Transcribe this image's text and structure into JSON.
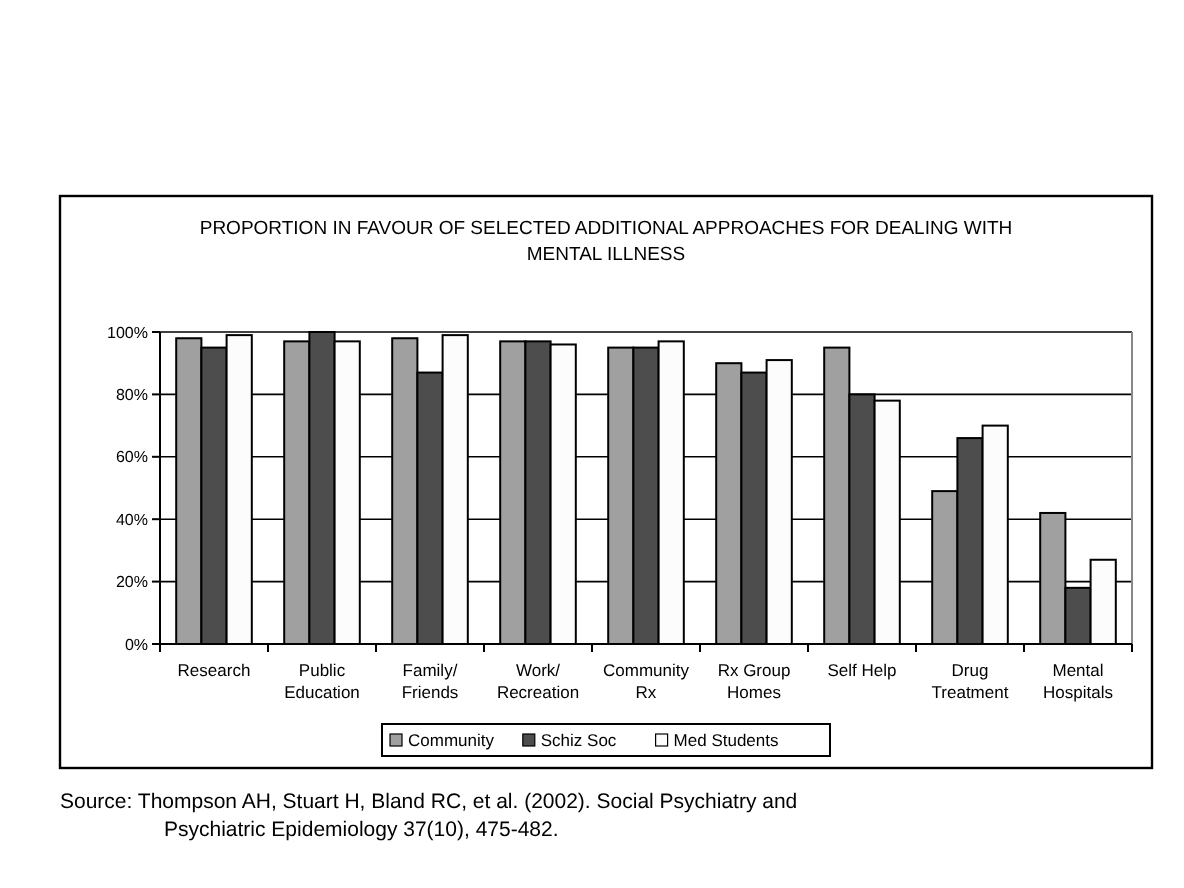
{
  "chart_data": {
    "type": "bar",
    "title": "PROPORTION IN FAVOUR OF SELECTED ADDITIONAL APPROACHES FOR DEALING WITH MENTAL ILLNESS",
    "categories": [
      "Research",
      "Public\nEducation",
      "Family/\nFriends",
      "Work/\nRecreation",
      "Community\nRx",
      "Rx Group\nHomes",
      "Self Help",
      "Drug\nTreatment",
      "Mental\nHospitals"
    ],
    "series": [
      {
        "name": "Community",
        "color": "#a0a0a0",
        "values": [
          98,
          97,
          98,
          97,
          95,
          90,
          95,
          49,
          42
        ]
      },
      {
        "name": "Schiz Soc",
        "color": "#4d4d4d",
        "values": [
          95,
          100,
          87,
          97,
          95,
          87,
          80,
          66,
          18
        ]
      },
      {
        "name": "Med Students",
        "color": "#fcfcfc",
        "values": [
          99,
          97,
          99,
          96,
          97,
          91,
          78,
          70,
          27
        ]
      }
    ],
    "ylim": [
      0,
      100
    ],
    "yticks": [
      {
        "value": 0,
        "label": "0%"
      },
      {
        "value": 20,
        "label": "20%"
      },
      {
        "value": 40,
        "label": "40%"
      },
      {
        "value": 60,
        "label": "60%"
      },
      {
        "value": 80,
        "label": "80%"
      },
      {
        "value": 100,
        "label": "100%"
      }
    ],
    "grid": "y",
    "legend": "bottom",
    "annotations": [
      "Source: Thompson AH, Stuart H, Bland RC, et al. (2002). Social Psychiatry and Psychiatric Epidemiology 37(10), 475-482."
    ]
  }
}
